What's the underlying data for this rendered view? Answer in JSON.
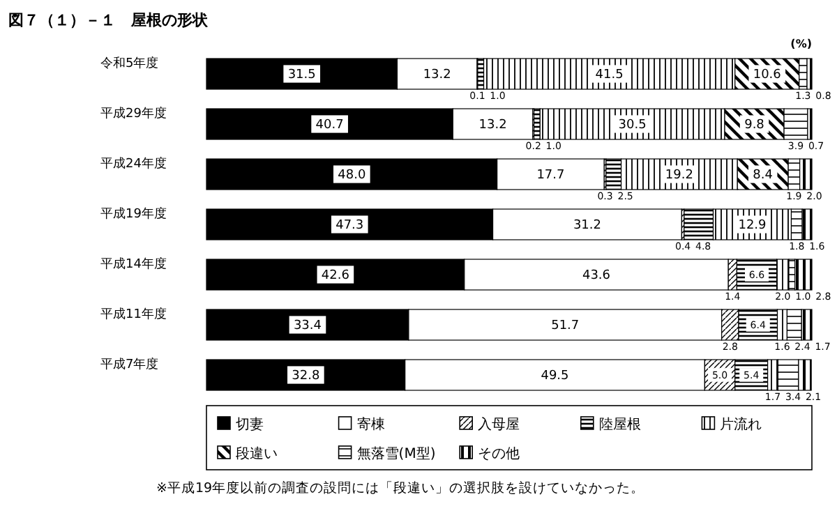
{
  "chart_data": {
    "type": "bar",
    "orientation": "horizontal",
    "stacked": true,
    "title": "図７（１）－１　屋根の形状",
    "xlabel": "(%)",
    "categories": [
      "令和5年度",
      "平成29年度",
      "平成24年度",
      "平成19年度",
      "平成14年度",
      "平成11年度",
      "平成7年度"
    ],
    "series": [
      {
        "name": "切妻",
        "color": "#000000",
        "values": [
          31.5,
          40.7,
          48.0,
          47.3,
          42.6,
          33.4,
          32.8
        ],
        "value_labels": [
          "31.5",
          "40.7",
          "48.0",
          "47.3",
          "42.6",
          "33.4",
          "32.8"
        ]
      },
      {
        "name": "寄棟",
        "color": "#ffffff",
        "values": [
          13.2,
          13.2,
          17.7,
          31.2,
          43.6,
          51.7,
          49.5
        ],
        "value_labels": [
          "13.2",
          "13.2",
          "17.7",
          "31.2",
          "43.6",
          "51.7",
          "49.5"
        ]
      },
      {
        "name": "入母屋",
        "color": "#000000",
        "values": [
          0.1,
          0.2,
          0.3,
          0.4,
          1.4,
          2.8,
          5.0
        ],
        "value_labels": [
          "0.1",
          "0.2",
          "0.3",
          "0.4",
          "1.4",
          "2.8",
          "5.0"
        ]
      },
      {
        "name": "陸屋根",
        "color": "#000000",
        "values": [
          1.0,
          1.0,
          2.5,
          4.8,
          6.6,
          6.4,
          5.4
        ],
        "value_labels": [
          "1.0",
          "1.0",
          "2.5",
          "4.8",
          "6.6",
          "6.4",
          "5.4"
        ]
      },
      {
        "name": "片流れ",
        "color": "#000000",
        "values": [
          41.5,
          30.5,
          19.2,
          12.9,
          2.0,
          1.6,
          1.7
        ],
        "value_labels": [
          "41.5",
          "30.5",
          "19.2",
          "12.9",
          "2.0",
          "1.6",
          "1.7"
        ]
      },
      {
        "name": "段違い",
        "color": "#000000",
        "values": [
          10.6,
          9.8,
          8.4,
          null,
          null,
          null,
          null
        ],
        "value_labels": [
          "10.6",
          "9.8",
          "8.4",
          null,
          null,
          null,
          null
        ]
      },
      {
        "name": "無落雪(M型)",
        "color": "#000000",
        "values": [
          1.3,
          3.9,
          1.9,
          1.8,
          1.0,
          2.4,
          3.4
        ],
        "value_labels": [
          "1.3",
          "3.9",
          "1.9",
          "1.8",
          "1.0",
          "2.4",
          "3.4"
        ]
      },
      {
        "name": "その他",
        "color": "#000000",
        "values": [
          0.8,
          0.7,
          2.0,
          1.6,
          2.8,
          1.7,
          2.1
        ],
        "value_labels": [
          "0.8",
          "0.7",
          "2.0",
          "1.6",
          "2.8",
          "1.7",
          "2.1"
        ]
      }
    ],
    "xlim": [
      0,
      100
    ],
    "legend": "bottom",
    "annotations": [
      "※平成19年度以前の調査の設問には「段違い」の選択肢を設けていなかった。"
    ]
  }
}
